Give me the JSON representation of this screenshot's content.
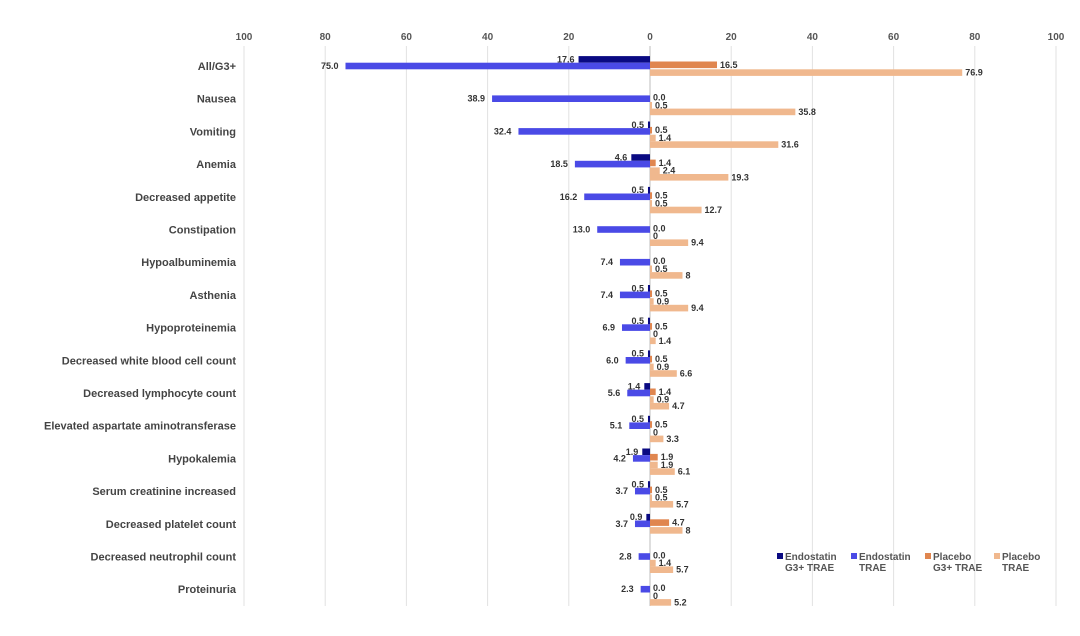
{
  "chart_data": {
    "type": "bar",
    "orientation": "horizontal",
    "layout": "back-to-back",
    "grid": true,
    "legend_position": "bottom-right",
    "x_ticks": [
      "100",
      "80",
      "60",
      "40",
      "20",
      "0",
      "20",
      "40",
      "60",
      "80",
      "100"
    ],
    "xlim_left": [
      100,
      0
    ],
    "xlim_right": [
      0,
      100
    ],
    "categories": [
      "All/G3+",
      "Nausea",
      "Vomiting",
      "Anemia",
      "Decreased appetite",
      "Constipation",
      "Hypoalbuminemia",
      "Asthenia",
      "Hypoproteinemia",
      "Decreased white blood cell count",
      "Decreased lymphocyte count",
      "Elevated aspartate aminotransferase",
      "Hypokalemia",
      "Serum creatinine increased",
      "Decreased platelet count",
      "Decreased neutrophil count",
      "Proteinuria"
    ],
    "series": [
      {
        "name": "Endostatin G3+ TRAE",
        "side": "left",
        "color": "#0a0a82",
        "values": [
          17.6,
          null,
          0.5,
          4.6,
          0.5,
          null,
          null,
          0.5,
          0.5,
          0.5,
          1.4,
          0.5,
          1.9,
          0.5,
          0.9,
          null,
          null
        ],
        "labels": [
          "17.6",
          "",
          "0.5",
          "4.6",
          "0.5",
          "",
          "",
          "0.5",
          "0.5",
          "0.5",
          "1.4",
          "0.5",
          "1.9",
          "0.5",
          "0.9",
          "",
          ""
        ]
      },
      {
        "name": "Endostatin TRAE",
        "side": "left",
        "color": "#4a4ae6",
        "values": [
          75.0,
          38.9,
          32.4,
          18.5,
          16.2,
          13.0,
          7.4,
          7.4,
          6.9,
          6.0,
          5.6,
          5.1,
          4.2,
          3.7,
          3.7,
          2.8,
          2.3
        ],
        "labels": [
          "75.0",
          "38.9",
          "32.4",
          "18.5",
          "16.2",
          "13.0",
          "7.4",
          "7.4",
          "6.9",
          "6.0",
          "5.6",
          "5.1",
          "4.2",
          "3.7",
          "3.7",
          "2.8",
          "2.3"
        ]
      },
      {
        "name": "Placebo G3+ TRAE",
        "side": "right",
        "color": "#e0864f",
        "values": [
          16.5,
          0.0,
          0.5,
          1.4,
          0.5,
          0.0,
          0.0,
          0.5,
          0.5,
          0.5,
          1.4,
          0.5,
          1.9,
          0.5,
          4.7,
          0.0,
          0.0
        ],
        "labels": [
          "16.5",
          "0.0",
          "0.5",
          "1.4",
          "0.5",
          "0.0",
          "0.0",
          "0.5",
          "0.5",
          "0.5",
          "1.4",
          "0.5",
          "1.9",
          "0.5",
          "4.7",
          "0.0",
          "0.0"
        ]
      },
      {
        "name": "Placebo TRAE",
        "side": "right",
        "color": "#f0b88e",
        "values": [
          76.9,
          0.5,
          1.4,
          2.4,
          0.5,
          0,
          0.5,
          0.9,
          0,
          0.9,
          0.9,
          0,
          1.9,
          0.5,
          8,
          1.4,
          0
        ],
        "labels": [
          "76.9",
          "0.5",
          "1.4",
          "2.4",
          "0.5",
          "0",
          "0.5",
          "0.9",
          "0",
          "0.9",
          "0.9",
          "0",
          "1.9",
          "0.5",
          "8",
          "1.4",
          "0"
        ]
      },
      {
        "name": "Placebo TRAE (lower)",
        "side": "right",
        "color": "#f0b88e",
        "values": [
          null,
          35.8,
          31.6,
          19.3,
          12.7,
          9.4,
          8,
          9.4,
          1.4,
          6.6,
          4.7,
          3.3,
          6.1,
          5.7,
          null,
          5.7,
          5.2
        ],
        "labels": [
          "",
          "35.8",
          "31.6",
          "19.3",
          "12.7",
          "9.4",
          "8",
          "9.4",
          "1.4",
          "6.6",
          "4.7",
          "3.3",
          "6.1",
          "5.7",
          "",
          "5.7",
          "5.2"
        ]
      }
    ],
    "legend": [
      {
        "line1": "Endostatin",
        "line2": "G3+ TRAE",
        "color": "#0a0a82"
      },
      {
        "line1": "Endostatin",
        "line2": "TRAE",
        "color": "#4a4ae6"
      },
      {
        "line1": "Placebo",
        "line2": "G3+ TRAE",
        "color": "#e0864f"
      },
      {
        "line1": "Placebo",
        "line2": "TRAE",
        "color": "#f0b88e"
      }
    ]
  }
}
